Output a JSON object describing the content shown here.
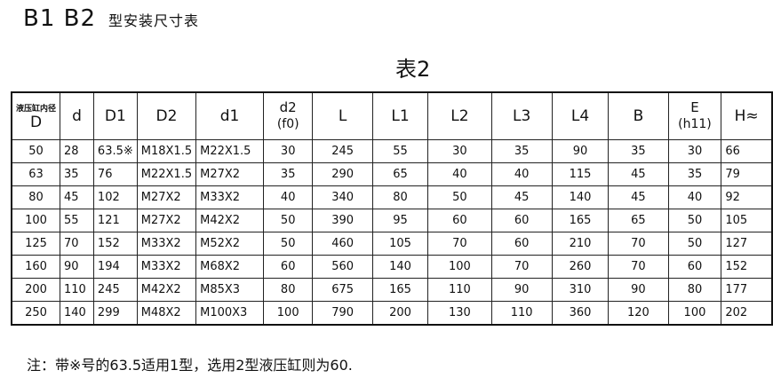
{
  "title": {
    "main": "B1  B2",
    "sub": "型安装尺寸表"
  },
  "table_no": "表2",
  "header": [
    {
      "top": "液压缸内径",
      "main": "D"
    },
    {
      "main": "d"
    },
    {
      "main": "D1"
    },
    {
      "main": "D2"
    },
    {
      "main": "d1"
    },
    {
      "top": "d2",
      "main": "(f0)"
    },
    {
      "main": "L"
    },
    {
      "main": "L1"
    },
    {
      "main": "L2"
    },
    {
      "main": "L3"
    },
    {
      "main": "L4"
    },
    {
      "main": "B"
    },
    {
      "top": "E",
      "main": "(h11)"
    },
    {
      "main": "H≈"
    }
  ],
  "rows": [
    [
      "50",
      "28",
      "63.5※",
      "M18X1.5",
      "M22X1.5",
      "30",
      "245",
      "55",
      "30",
      "35",
      "90",
      "35",
      "30",
      "66"
    ],
    [
      "63",
      "35",
      "76",
      "M22X1.5",
      "M27X2",
      "35",
      "290",
      "65",
      "40",
      "40",
      "115",
      "45",
      "35",
      "79"
    ],
    [
      "80",
      "45",
      "102",
      "M27X2",
      "M33X2",
      "40",
      "340",
      "80",
      "50",
      "45",
      "140",
      "45",
      "40",
      "92"
    ],
    [
      "100",
      "55",
      "121",
      "M27X2",
      "M42X2",
      "50",
      "390",
      "95",
      "60",
      "60",
      "165",
      "65",
      "50",
      "105"
    ],
    [
      "125",
      "70",
      "152",
      "M33X2",
      "M52X2",
      "50",
      "460",
      "105",
      "70",
      "60",
      "210",
      "70",
      "50",
      "127"
    ],
    [
      "160",
      "90",
      "194",
      "M33X2",
      "M68X2",
      "60",
      "560",
      "140",
      "100",
      "70",
      "260",
      "70",
      "60",
      "152"
    ],
    [
      "200",
      "110",
      "245",
      "M42X2",
      "M85X3",
      "80",
      "675",
      "165",
      "110",
      "90",
      "310",
      "90",
      "80",
      "177"
    ],
    [
      "250",
      "140",
      "299",
      "M48X2",
      "M100X3",
      "100",
      "790",
      "200",
      "130",
      "110",
      "360",
      "120",
      "100",
      "202"
    ]
  ],
  "note": "注：带※号的63.5适用1型，选用2型液压缸则为60."
}
